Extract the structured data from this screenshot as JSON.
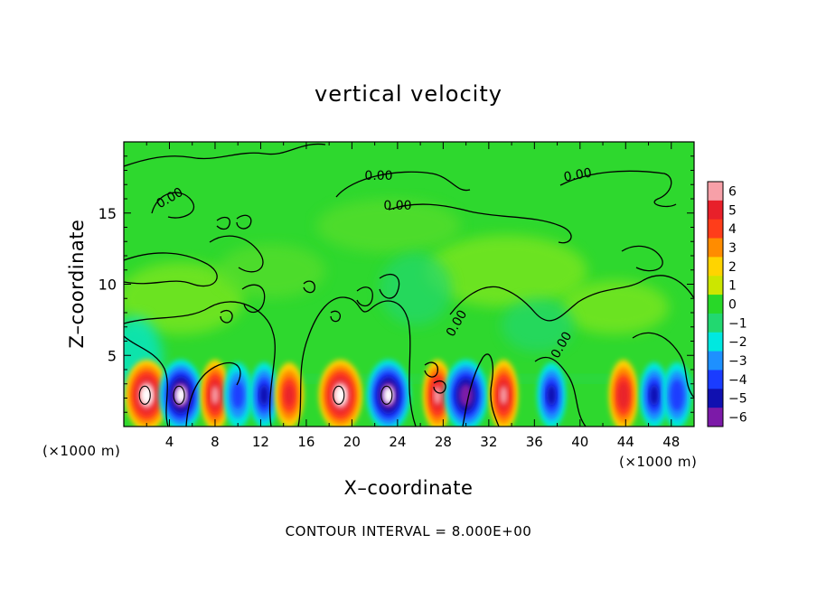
{
  "chart_data": {
    "type": "heatmap",
    "title": "vertical velocity",
    "xlabel": "X–coordinate",
    "ylabel": "Z–coordinate",
    "x_unit_label_left": "(×1000 m)",
    "x_unit_label_right": "(×1000 m)",
    "xlim": [
      0,
      50
    ],
    "ylim": [
      0,
      20
    ],
    "x_ticks": [
      4,
      8,
      12,
      16,
      20,
      24,
      28,
      32,
      36,
      40,
      44,
      48
    ],
    "y_ticks": [
      5,
      10,
      15
    ],
    "x_tick_labels": [
      "4",
      "8",
      "12",
      "16",
      "20",
      "24",
      "28",
      "32",
      "36",
      "40",
      "44",
      "48"
    ],
    "y_tick_labels": [
      "5",
      "10",
      "15"
    ],
    "colorbar": {
      "min": -6,
      "max": 6,
      "levels": [
        6,
        5,
        4,
        3,
        2,
        1,
        0,
        -1,
        -2,
        -3,
        -4,
        -5,
        -6
      ],
      "labels": [
        "6",
        "5",
        "4",
        "3",
        "2",
        "1",
        "0",
        "−1",
        "−2",
        "−3",
        "−4",
        "−5",
        "−6"
      ],
      "colors": [
        "#f7a0a8",
        "#e8202a",
        "#ff3d1a",
        "#ff8c00",
        "#ffd400",
        "#cce600",
        "#28d828",
        "#22d870",
        "#00e8e0",
        "#1e90ff",
        "#1a3cff",
        "#1010b0",
        "#7c1aa8"
      ]
    },
    "contour_labels": [
      "0.00",
      "0.00",
      "0.00",
      "0.00",
      "0.00",
      "0.00"
    ],
    "contour_interval": "CONTOUR INTERVAL = 8.000E+00",
    "cells": [
      {
        "x": 2,
        "peak": 6.0
      },
      {
        "x": 5,
        "peak": -6.0
      },
      {
        "x": 8,
        "peak": 5.0
      },
      {
        "x": 10,
        "peak": -3.0
      },
      {
        "x": 12.3,
        "peak": -4.0
      },
      {
        "x": 14.5,
        "peak": 4.0
      },
      {
        "x": 19.0,
        "peak": 6.0
      },
      {
        "x": 23.2,
        "peak": -6.0
      },
      {
        "x": 27.5,
        "peak": 5.0
      },
      {
        "x": 30.0,
        "peak": -5.5
      },
      {
        "x": 33.3,
        "peak": 5.0
      },
      {
        "x": 37.5,
        "peak": -4.0
      },
      {
        "x": 43.8,
        "peak": 4.5
      },
      {
        "x": 46.5,
        "peak": -4.0
      },
      {
        "x": 48.5,
        "peak": -3.5
      }
    ]
  }
}
